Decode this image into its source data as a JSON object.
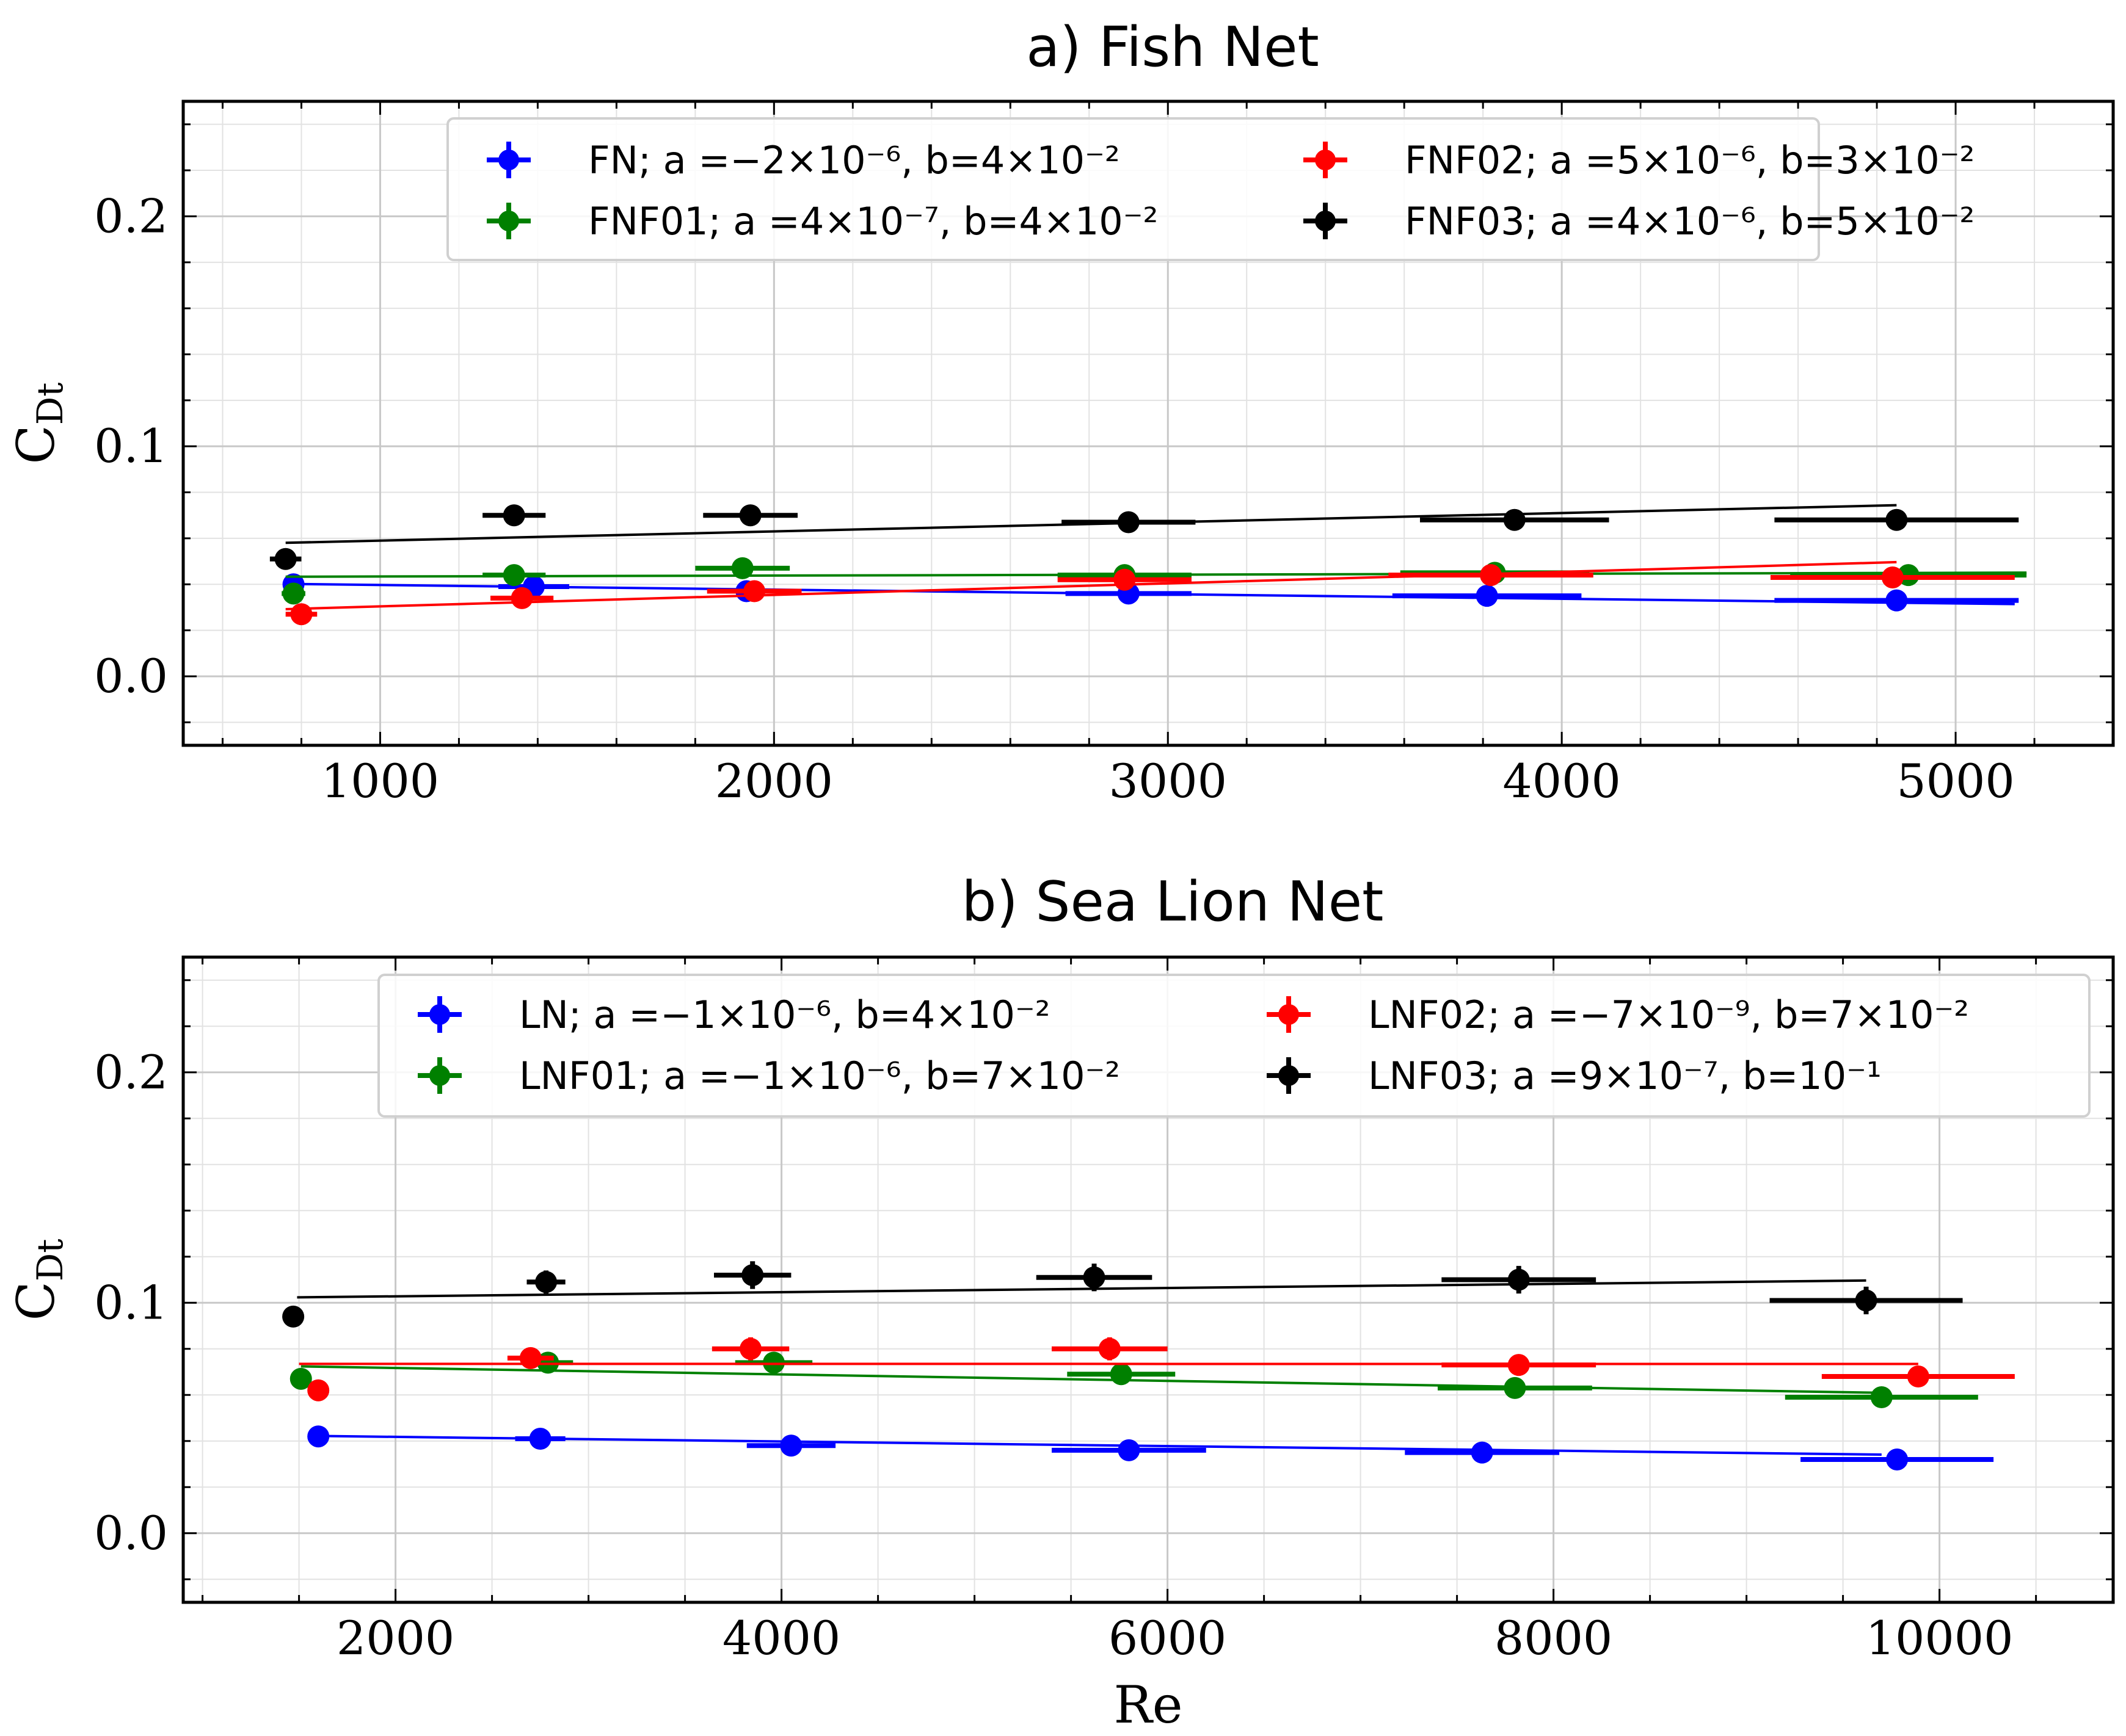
{
  "chart_data": [
    {
      "type": "scatter",
      "title": "a) Fish Net",
      "xlabel": "",
      "ylabel": "C",
      "ylabel_sub": "Dt",
      "xlim": [
        500,
        5400
      ],
      "ylim": [
        -0.03,
        0.25
      ],
      "xticks": [
        1000,
        2000,
        3000,
        4000,
        5000
      ],
      "xtick_labels": [
        "1000",
        "2000",
        "3000",
        "4000",
        "5000"
      ],
      "yticks": [
        0.0,
        0.1,
        0.2
      ],
      "ytick_labels": [
        "0.0",
        "0.1",
        "0.2"
      ],
      "grid": true,
      "legend_position": "top-right",
      "series": [
        {
          "name": "FN",
          "legend_label": "FN; a =−2×10⁻⁶, b=4×10⁻²",
          "color": "#0000ff",
          "x": [
            780,
            1390,
            1930,
            2900,
            3810,
            4850
          ],
          "y": [
            0.04,
            0.039,
            0.037,
            0.036,
            0.035,
            0.033
          ],
          "xerr": [
            25,
            90,
            90,
            160,
            240,
            310
          ],
          "yerr": [
            0.002,
            0.002,
            0.002,
            0.002,
            0.002,
            0.002
          ],
          "fit": {
            "a": -2e-06,
            "b": 0.0417,
            "x_range": [
              760,
              5150
            ]
          }
        },
        {
          "name": "FNF01",
          "legend_label": "FNF01; a =4×10⁻⁷, b=4×10⁻²",
          "color": "#008000",
          "x": [
            780,
            1340,
            1920,
            2890,
            3830,
            4880
          ],
          "y": [
            0.036,
            0.044,
            0.047,
            0.044,
            0.045,
            0.044
          ],
          "xerr": [
            30,
            80,
            120,
            170,
            240,
            300
          ],
          "yerr": [
            0.002,
            0.002,
            0.002,
            0.002,
            0.002,
            0.002
          ],
          "fit": {
            "a": 4e-07,
            "b": 0.043,
            "x_range": [
              760,
              5180
            ]
          }
        },
        {
          "name": "FNF02",
          "legend_label": "FNF02; a =5×10⁻⁶, b=3×10⁻²",
          "color": "#ff0000",
          "x": [
            800,
            1360,
            1950,
            2890,
            3820,
            4840
          ],
          "y": [
            0.027,
            0.034,
            0.037,
            0.042,
            0.044,
            0.043
          ],
          "xerr": [
            40,
            80,
            120,
            170,
            260,
            310
          ],
          "yerr": [
            0.002,
            0.002,
            0.002,
            0.002,
            0.002,
            0.002
          ],
          "fit": {
            "a": 5e-06,
            "b": 0.0254,
            "x_range": [
              760,
              4850
            ]
          }
        },
        {
          "name": "FNF03",
          "legend_label": "FNF03; a =4×10⁻⁶, b=5×10⁻²",
          "color": "#000000",
          "x": [
            760,
            1340,
            1940,
            2900,
            3880,
            4850
          ],
          "y": [
            0.051,
            0.07,
            0.07,
            0.067,
            0.068,
            0.068
          ],
          "xerr": [
            40,
            80,
            120,
            170,
            240,
            310
          ],
          "yerr": [
            0.002,
            0.002,
            0.002,
            0.002,
            0.002,
            0.002
          ],
          "fit": {
            "a": 4e-06,
            "b": 0.055,
            "x_range": [
              760,
              4850
            ]
          }
        }
      ]
    },
    {
      "type": "scatter",
      "title": "b) Sea Lion Net",
      "xlabel": "Re",
      "ylabel": "C",
      "ylabel_sub": "Dt",
      "xlim": [
        900,
        10900
      ],
      "ylim": [
        -0.03,
        0.25
      ],
      "xticks": [
        2000,
        4000,
        6000,
        8000,
        10000
      ],
      "xtick_labels": [
        "2000",
        "4000",
        "6000",
        "8000",
        "10000"
      ],
      "yticks": [
        0.0,
        0.1,
        0.2
      ],
      "ytick_labels": [
        "0.0",
        "0.1",
        "0.2"
      ],
      "grid": true,
      "legend_position": "top-right",
      "series": [
        {
          "name": "LN",
          "legend_label": "LN; a =−1×10⁻⁶, b=4×10⁻²",
          "color": "#0000ff",
          "x": [
            1600,
            2750,
            4050,
            5800,
            7630,
            9780
          ],
          "y": [
            0.042,
            0.041,
            0.038,
            0.036,
            0.035,
            0.032
          ],
          "xerr": [
            30,
            130,
            230,
            400,
            400,
            500
          ],
          "yerr": [
            0.002,
            0.002,
            0.002,
            0.002,
            0.002,
            0.002
          ],
          "fit": {
            "a": -1e-06,
            "b": 0.0438,
            "x_range": [
              1550,
              9700
            ]
          }
        },
        {
          "name": "LNF01",
          "legend_label": "LNF01; a =−1×10⁻⁶, b=7×10⁻²",
          "color": "#008000",
          "x": [
            1510,
            2790,
            3960,
            5760,
            7800,
            9700
          ],
          "y": [
            0.067,
            0.074,
            0.074,
            0.069,
            0.063,
            0.059
          ],
          "xerr": [
            50,
            130,
            200,
            280,
            400,
            500
          ],
          "yerr": [
            0.002,
            0.002,
            0.002,
            0.002,
            0.002,
            0.002
          ],
          "fit": {
            "a": -1.4e-06,
            "b": 0.0745,
            "x_range": [
              1510,
              9700
            ]
          }
        },
        {
          "name": "LNF02",
          "legend_label": "LNF02; a =−7×10⁻⁹, b=7×10⁻²",
          "color": "#ff0000",
          "x": [
            1600,
            2700,
            3840,
            5700,
            7820,
            9890
          ],
          "y": [
            0.062,
            0.076,
            0.08,
            0.08,
            0.073,
            0.068
          ],
          "xerr": [
            40,
            120,
            200,
            300,
            400,
            500
          ],
          "yerr": [
            0.002,
            0.002,
            0.005,
            0.005,
            0.003,
            0.002
          ],
          "fit": {
            "a": -7e-09,
            "b": 0.0735,
            "x_range": [
              1500,
              9890
            ]
          }
        },
        {
          "name": "LNF03",
          "legend_label": "LNF03; a =9×10⁻⁷, b=10⁻¹",
          "color": "#000000",
          "x": [
            1470,
            2780,
            3850,
            5620,
            7820,
            9620
          ],
          "y": [
            0.094,
            0.109,
            0.112,
            0.111,
            0.11,
            0.101
          ],
          "xerr": [
            40,
            100,
            200,
            300,
            400,
            500
          ],
          "yerr": [
            0.003,
            0.005,
            0.006,
            0.006,
            0.006,
            0.006
          ],
          "fit": {
            "a": 9e-07,
            "b": 0.101,
            "x_range": [
              1490,
              9620
            ]
          }
        }
      ]
    }
  ]
}
